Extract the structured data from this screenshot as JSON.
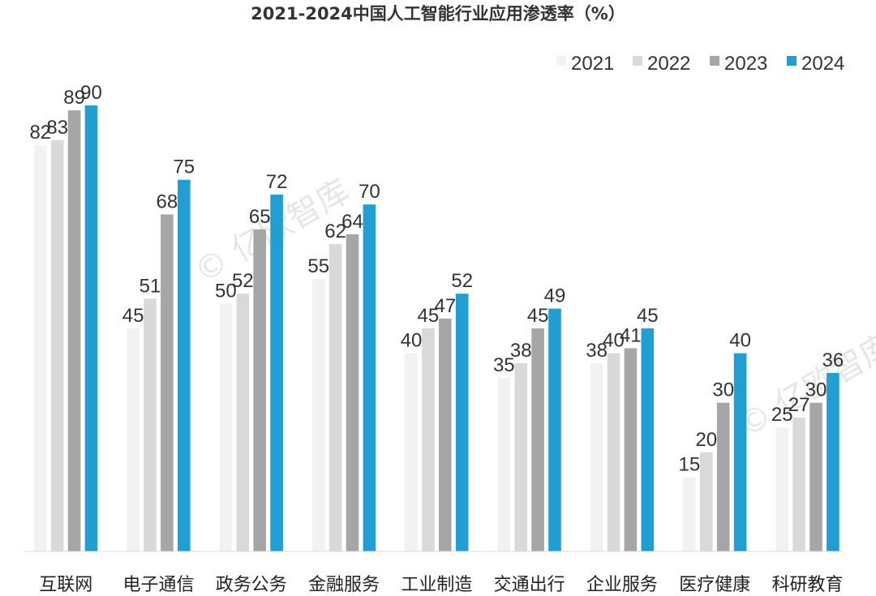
{
  "chart_data": {
    "type": "bar",
    "title": "2021-2024中国人工智能行业应用渗透率（%）",
    "categories": [
      "互联网",
      "电子通信",
      "政务公务",
      "金融服务",
      "工业制造",
      "交通出行",
      "企业服务",
      "医疗健康",
      "科研教育"
    ],
    "series": [
      {
        "name": "2021",
        "color": "#f2f2f2",
        "values": [
          82,
          45,
          50,
          55,
          40,
          35,
          38,
          15,
          25
        ]
      },
      {
        "name": "2022",
        "color": "#d9d9d9",
        "values": [
          83,
          51,
          52,
          62,
          45,
          38,
          40,
          20,
          27
        ]
      },
      {
        "name": "2023",
        "color": "#a6a6a6",
        "values": [
          89,
          68,
          65,
          64,
          47,
          45,
          41,
          30,
          30
        ]
      },
      {
        "name": "2024",
        "color": "#1f9fd4",
        "values": [
          90,
          75,
          72,
          70,
          52,
          49,
          45,
          40,
          36
        ]
      }
    ],
    "ylim": [
      0,
      100
    ],
    "grid": false,
    "legend_position": "top-right",
    "data_labels": true
  },
  "watermark": {
    "text": "© 亿欧智库"
  }
}
